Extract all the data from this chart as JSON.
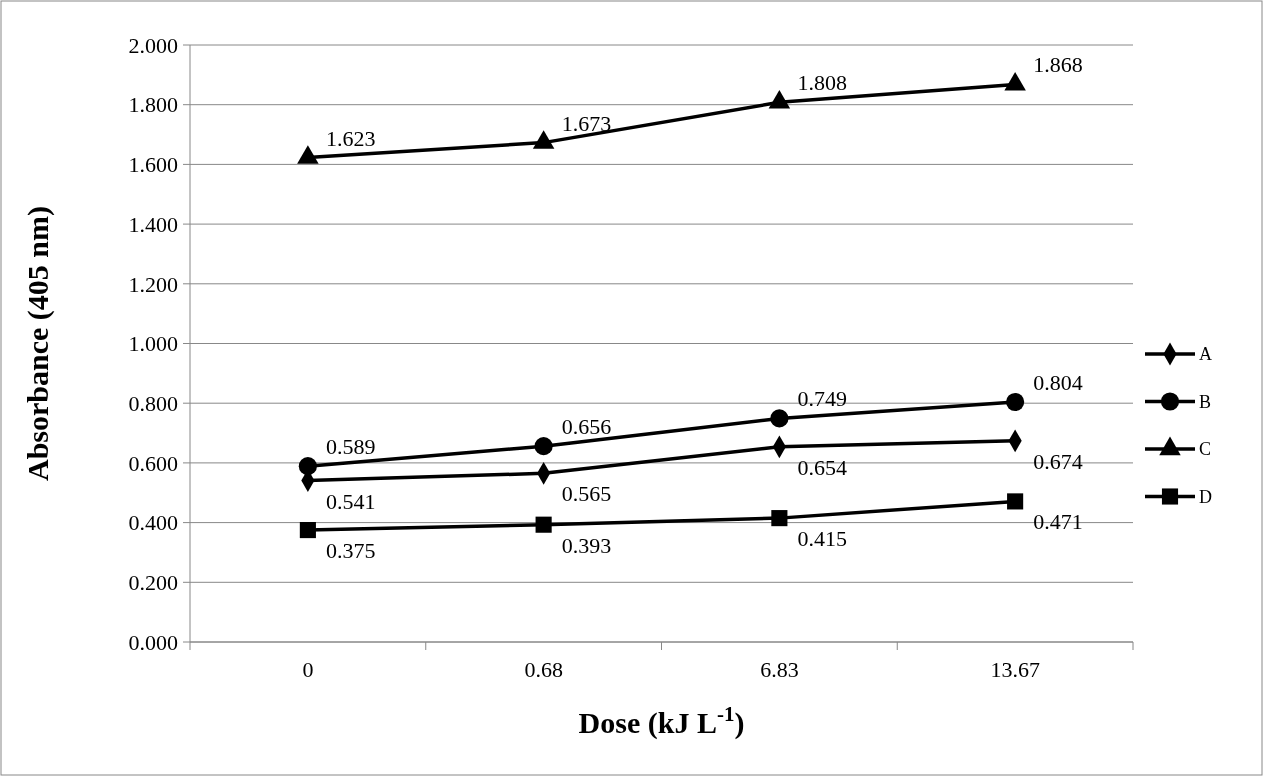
{
  "chart_data": {
    "type": "line",
    "xlabel": "Dose (kJ L$^{-1}$)",
    "ylabel": "Absorbance (405 nm)",
    "categories": [
      "0",
      "0.68",
      "6.83",
      "13.67"
    ],
    "series": [
      {
        "name": "A",
        "color": "#000000",
        "marker": "diamond",
        "values": [
          0.541,
          0.565,
          0.654,
          0.674
        ]
      },
      {
        "name": "B",
        "color": "#000000",
        "marker": "circle",
        "values": [
          0.589,
          0.656,
          0.749,
          0.804
        ]
      },
      {
        "name": "C",
        "color": "#000000",
        "marker": "triangle",
        "values": [
          1.623,
          1.673,
          1.808,
          1.868
        ]
      },
      {
        "name": "D",
        "color": "#000000",
        "marker": "square",
        "values": [
          0.375,
          0.393,
          0.415,
          0.471
        ]
      }
    ],
    "ylim": [
      0,
      2
    ],
    "yticks": [
      {
        "value": 0,
        "label": "0.000"
      },
      {
        "value": 0.2,
        "label": "0.200"
      },
      {
        "value": 0.4,
        "label": "0.400"
      },
      {
        "value": 0.6,
        "label": "0.600"
      },
      {
        "value": 0.8,
        "label": "0.800"
      },
      {
        "value": 1,
        "label": "1.000"
      },
      {
        "value": 1.2,
        "label": "1.200"
      },
      {
        "value": 1.4,
        "label": "1.400"
      },
      {
        "value": 1.6,
        "label": "1.600"
      },
      {
        "value": 1.8,
        "label": "1.800"
      },
      {
        "value": 2,
        "label": "2.000"
      }
    ],
    "grid": "y",
    "legend": "right",
    "data_labels": true,
    "line_style": "solid"
  }
}
